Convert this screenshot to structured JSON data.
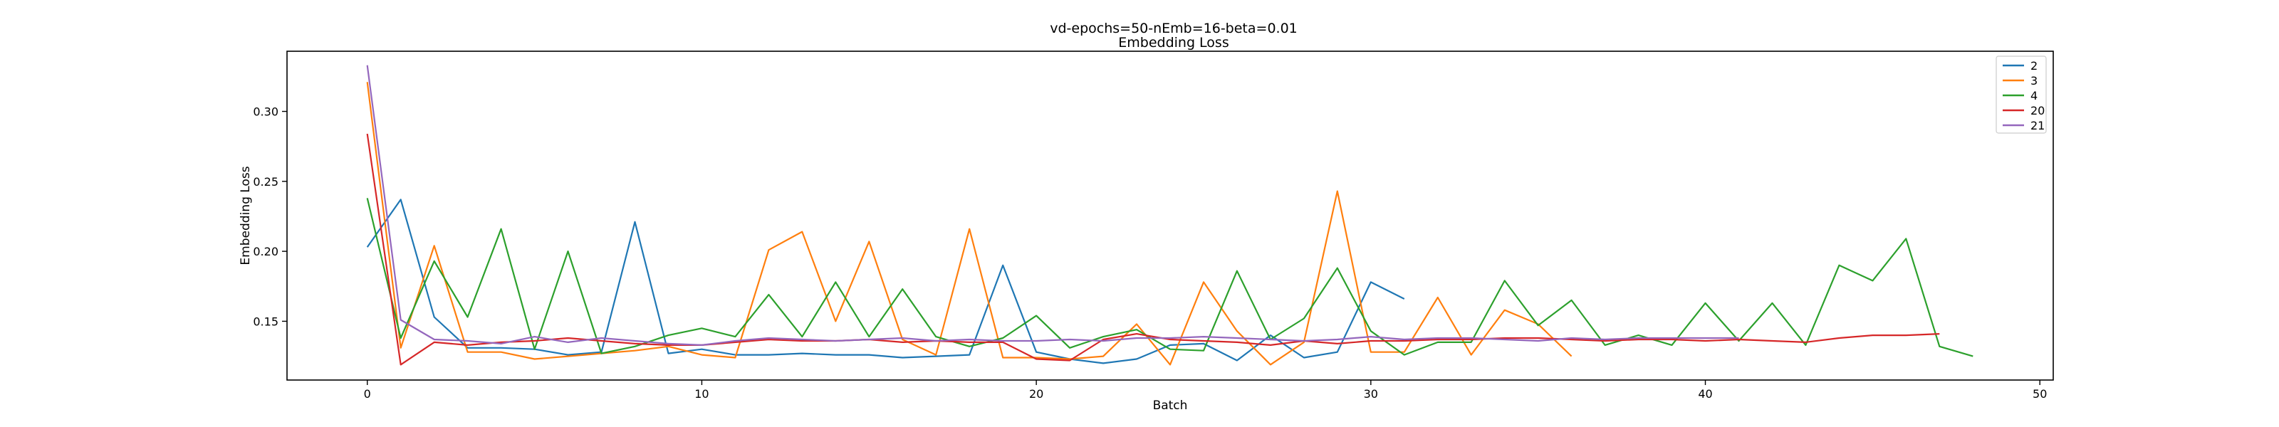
{
  "chart_data": {
    "type": "line",
    "title": "vd-epochs=50-nEmb=16-beta=0.01",
    "subtitle": "Embedding Loss",
    "xlabel": "Batch",
    "ylabel": "Embedding Loss",
    "xlim": [
      -2.4,
      50.4
    ],
    "ylim": [
      0.108,
      0.343
    ],
    "xticks": [
      0,
      10,
      20,
      30,
      40,
      50
    ],
    "yticks": [
      0.15,
      0.2,
      0.25,
      0.3
    ],
    "ytick_labels": [
      "0.15",
      "0.20",
      "0.25",
      "0.30"
    ],
    "legend_position": "top-right",
    "grid": false,
    "series": [
      {
        "name": "2",
        "color": "#1f77b4",
        "x": [
          0,
          1,
          2,
          3,
          4,
          5,
          6,
          7,
          8,
          9,
          10,
          11,
          12,
          13,
          14,
          15,
          16,
          17,
          18,
          19,
          20,
          21,
          22,
          23,
          24,
          25,
          26,
          27,
          28,
          29,
          30,
          31
        ],
        "values": [
          0.203,
          0.237,
          0.153,
          0.131,
          0.131,
          0.13,
          0.126,
          0.128,
          0.221,
          0.127,
          0.13,
          0.126,
          0.126,
          0.127,
          0.126,
          0.126,
          0.124,
          0.125,
          0.126,
          0.19,
          0.128,
          0.123,
          0.12,
          0.123,
          0.133,
          0.134,
          0.122,
          0.14,
          0.124,
          0.128,
          0.178,
          0.166
        ]
      },
      {
        "name": "3",
        "color": "#ff7f0e",
        "x": [
          0,
          1,
          2,
          3,
          4,
          5,
          6,
          7,
          8,
          9,
          10,
          11,
          12,
          13,
          14,
          15,
          16,
          17,
          18,
          19,
          20,
          21,
          22,
          23,
          24,
          25,
          26,
          27,
          28,
          29,
          30,
          31,
          32,
          33,
          34,
          35,
          36
        ],
        "values": [
          0.321,
          0.131,
          0.204,
          0.128,
          0.128,
          0.123,
          0.125,
          0.127,
          0.129,
          0.132,
          0.126,
          0.124,
          0.201,
          0.214,
          0.15,
          0.207,
          0.137,
          0.126,
          0.216,
          0.124,
          0.124,
          0.123,
          0.125,
          0.148,
          0.119,
          0.178,
          0.143,
          0.119,
          0.135,
          0.243,
          0.128,
          0.128,
          0.167,
          0.126,
          0.158,
          0.148,
          0.125
        ]
      },
      {
        "name": "4",
        "color": "#2ca02c",
        "x": [
          0,
          1,
          2,
          3,
          4,
          5,
          6,
          7,
          8,
          9,
          10,
          11,
          12,
          13,
          14,
          15,
          16,
          17,
          18,
          19,
          20,
          21,
          22,
          23,
          24,
          25,
          26,
          27,
          28,
          29,
          30,
          31,
          32,
          33,
          34,
          35,
          36,
          37,
          38,
          39,
          40,
          41,
          42,
          43,
          44,
          45,
          46,
          47,
          48
        ],
        "values": [
          0.238,
          0.138,
          0.193,
          0.153,
          0.216,
          0.13,
          0.2,
          0.127,
          0.132,
          0.14,
          0.145,
          0.139,
          0.169,
          0.139,
          0.178,
          0.139,
          0.173,
          0.139,
          0.132,
          0.138,
          0.154,
          0.131,
          0.139,
          0.144,
          0.13,
          0.129,
          0.186,
          0.137,
          0.152,
          0.188,
          0.143,
          0.126,
          0.135,
          0.135,
          0.179,
          0.147,
          0.165,
          0.133,
          0.14,
          0.133,
          0.163,
          0.136,
          0.163,
          0.133,
          0.19,
          0.179,
          0.209,
          0.132,
          0.125
        ]
      },
      {
        "name": "20",
        "color": "#d62728",
        "x": [
          0,
          1,
          2,
          3,
          4,
          5,
          6,
          7,
          8,
          9,
          10,
          11,
          12,
          13,
          14,
          15,
          16,
          17,
          18,
          19,
          20,
          21,
          22,
          23,
          24,
          25,
          26,
          27,
          28,
          29,
          30,
          31,
          32,
          33,
          34,
          35,
          36,
          37,
          38,
          39,
          40,
          41,
          42,
          43,
          44,
          45,
          46,
          47
        ],
        "values": [
          0.284,
          0.119,
          0.135,
          0.133,
          0.135,
          0.136,
          0.138,
          0.136,
          0.134,
          0.133,
          0.133,
          0.135,
          0.137,
          0.136,
          0.136,
          0.137,
          0.135,
          0.136,
          0.135,
          0.135,
          0.123,
          0.122,
          0.137,
          0.141,
          0.137,
          0.136,
          0.135,
          0.133,
          0.136,
          0.134,
          0.136,
          0.136,
          0.137,
          0.137,
          0.138,
          0.138,
          0.137,
          0.136,
          0.137,
          0.137,
          0.136,
          0.137,
          0.136,
          0.135,
          0.138,
          0.14,
          0.14,
          0.141
        ]
      },
      {
        "name": "21",
        "color": "#9467bd",
        "x": [
          0,
          1,
          2,
          3,
          4,
          5,
          6,
          7,
          8,
          9,
          10,
          11,
          12,
          13,
          14,
          15,
          16,
          17,
          18,
          19,
          20,
          21,
          22,
          23,
          24,
          25,
          26,
          27,
          28,
          29,
          30,
          31,
          32,
          33,
          34,
          35,
          36,
          37,
          38,
          39,
          40,
          41
        ],
        "values": [
          0.333,
          0.151,
          0.137,
          0.136,
          0.134,
          0.139,
          0.135,
          0.138,
          0.136,
          0.134,
          0.133,
          0.136,
          0.138,
          0.137,
          0.136,
          0.137,
          0.138,
          0.136,
          0.137,
          0.136,
          0.136,
          0.137,
          0.136,
          0.138,
          0.138,
          0.139,
          0.138,
          0.137,
          0.136,
          0.137,
          0.139,
          0.137,
          0.138,
          0.138,
          0.137,
          0.136,
          0.138,
          0.137,
          0.138,
          0.138,
          0.138,
          0.138
        ]
      }
    ]
  }
}
